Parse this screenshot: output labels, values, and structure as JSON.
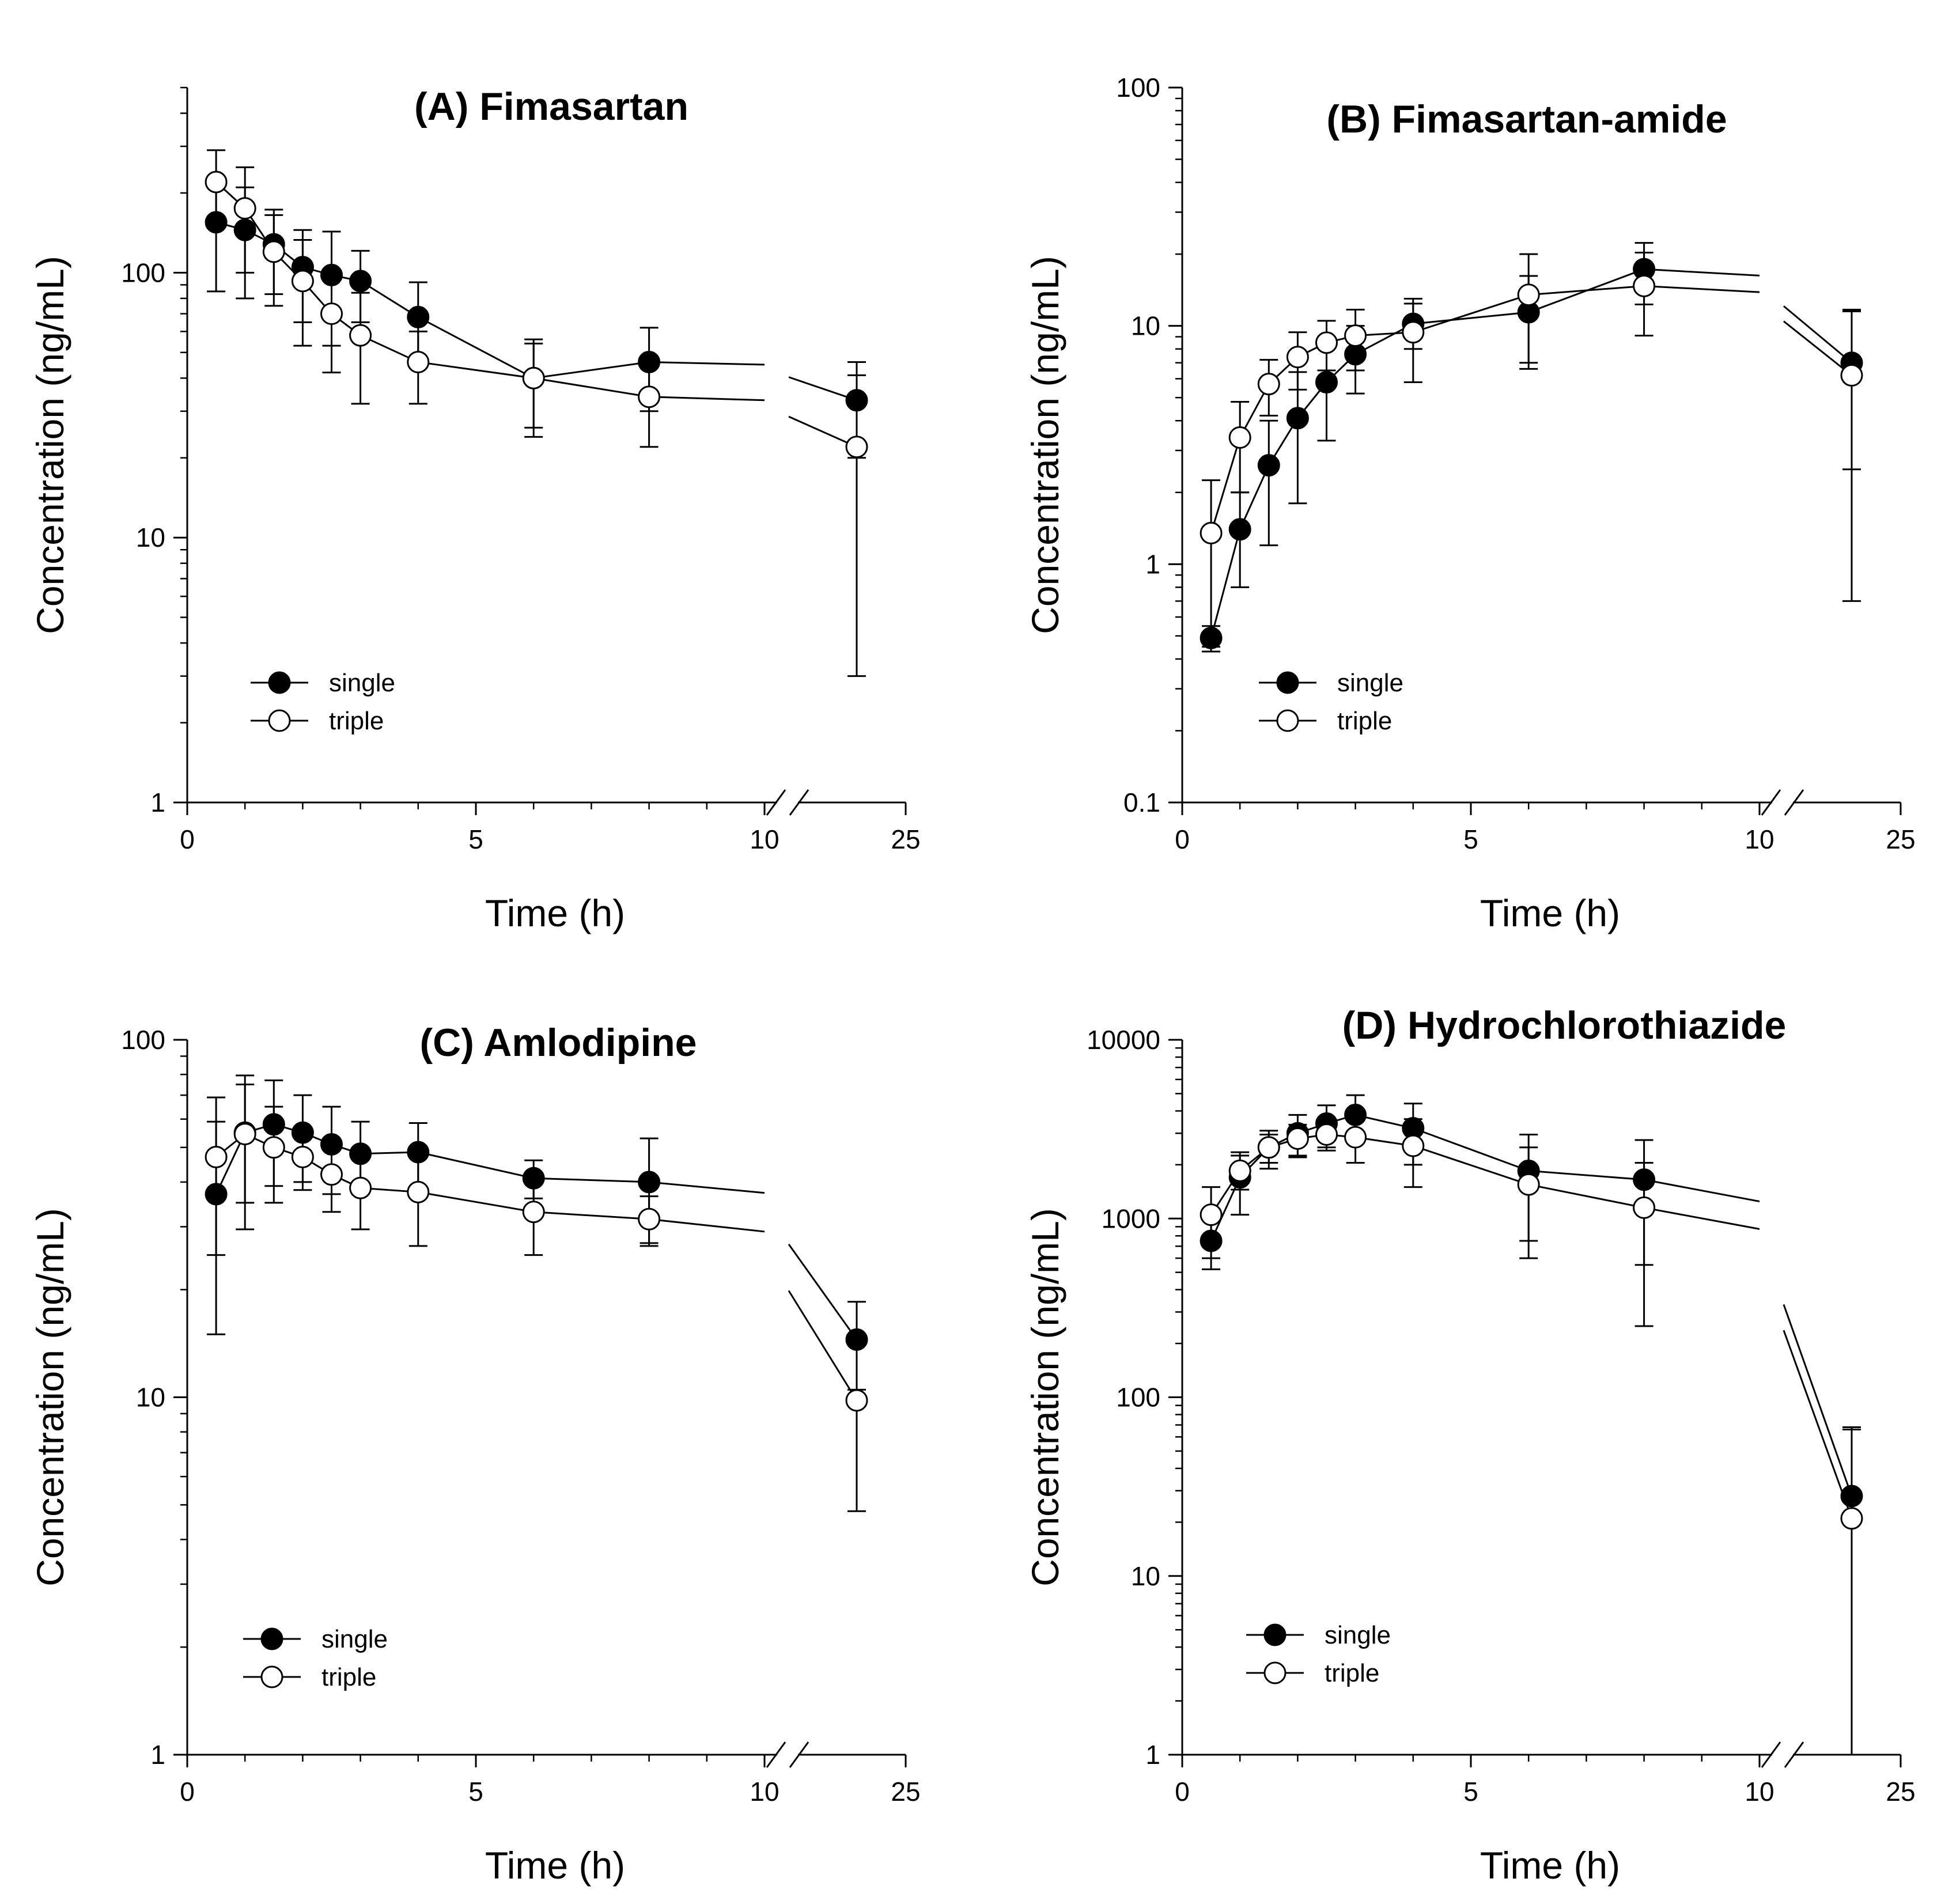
{
  "figure": {
    "x_axis_label": "Time (h)",
    "y_axis_label": "Concentration (ng/mL)"
  },
  "legend": [
    {
      "name": "single",
      "marker": "filled-circle"
    },
    {
      "name": "triple",
      "marker": "open-circle"
    }
  ],
  "colors": {
    "line": "#000000",
    "background": "#ffffff"
  },
  "chart_data": [
    {
      "id": "A",
      "type": "line",
      "title": "(A) Fimasartan",
      "xlabel": "Time (h)",
      "ylabel": "Concentration (ng/mL)",
      "yscale": "log",
      "ylim": [
        1,
        500
      ],
      "yticks": [
        1,
        10,
        100
      ],
      "ytick_labels": [
        "1",
        "10",
        "100"
      ],
      "xticks": [
        0,
        5,
        10,
        25
      ],
      "xtick_labels": [
        "0",
        "5",
        "10",
        "25"
      ],
      "x_axis_break": [
        10,
        24
      ],
      "series": [
        {
          "name": "single",
          "marker": "filled",
          "x": [
            0.5,
            1,
            1.5,
            2,
            2.5,
            3,
            4,
            6,
            8,
            24
          ],
          "y": [
            155,
            145,
            128,
            105,
            98,
            93,
            68,
            40,
            46,
            33
          ],
          "err": [
            70,
            65,
            45,
            40,
            45,
            28,
            24,
            14,
            16,
            13
          ]
        },
        {
          "name": "triple",
          "marker": "open",
          "x": [
            0.5,
            1,
            1.5,
            2,
            2.5,
            3,
            4,
            6,
            8,
            24
          ],
          "y": [
            220,
            175,
            120,
            93,
            70,
            58,
            46,
            40,
            34,
            22
          ],
          "err": [
            70,
            75,
            45,
            40,
            28,
            26,
            14,
            16,
            12,
            19
          ]
        }
      ]
    },
    {
      "id": "B",
      "type": "line",
      "title": "(B) Fimasartan-amide",
      "xlabel": "Time (h)",
      "ylabel": "Concentration (ng/mL)",
      "yscale": "log",
      "ylim": [
        0.1,
        100
      ],
      "yticks": [
        0.1,
        1,
        10,
        100
      ],
      "ytick_labels": [
        "0.1",
        "1",
        "10",
        "100"
      ],
      "xticks": [
        0,
        5,
        10,
        25
      ],
      "xtick_labels": [
        "0",
        "5",
        "10",
        "25"
      ],
      "x_axis_break": [
        10,
        24
      ],
      "series": [
        {
          "name": "single",
          "marker": "filled",
          "x": [
            0.5,
            1,
            1.5,
            2,
            2.5,
            3,
            4,
            6,
            8,
            24
          ],
          "y": [
            0.49,
            1.4,
            2.6,
            4.1,
            5.8,
            7.6,
            10.2,
            11.4,
            17.3,
            7.0
          ],
          "err": [
            0.06,
            0.6,
            1.4,
            2.3,
            2.5,
            2.4,
            2.2,
            4.8,
            5.0,
            4.5
          ]
        },
        {
          "name": "triple",
          "marker": "open",
          "x": [
            0.5,
            1,
            1.5,
            2,
            2.5,
            3,
            4,
            6,
            8,
            24
          ],
          "y": [
            1.35,
            3.4,
            5.7,
            7.4,
            8.5,
            9.1,
            9.4,
            13.5,
            14.7,
            6.2
          ],
          "err": [
            0.9,
            1.4,
            1.5,
            2.0,
            2.0,
            2.6,
            3.6,
            6.5,
            5.6,
            5.5
          ]
        }
      ]
    },
    {
      "id": "C",
      "type": "line",
      "title": "(C) Amlodipine",
      "xlabel": "Time (h)",
      "ylabel": "Concentration (ng/mL)",
      "yscale": "log",
      "ylim": [
        1,
        100
      ],
      "yticks": [
        1,
        10,
        100
      ],
      "ytick_labels": [
        "1",
        "10",
        "100"
      ],
      "xticks": [
        0,
        5,
        10,
        25
      ],
      "xtick_labels": [
        "0",
        "5",
        "10",
        "25"
      ],
      "x_axis_break": [
        10,
        24
      ],
      "series": [
        {
          "name": "single",
          "marker": "filled",
          "x": [
            0.5,
            1,
            1.5,
            2,
            2.5,
            3,
            4,
            6,
            8,
            24
          ],
          "y": [
            37,
            55,
            58,
            55,
            51,
            48,
            48.5,
            41,
            40,
            14.5
          ],
          "err": [
            22,
            20,
            19,
            15,
            14,
            11,
            10,
            5,
            13,
            4
          ]
        },
        {
          "name": "triple",
          "marker": "open",
          "x": [
            0.5,
            1,
            1.5,
            2,
            2.5,
            3,
            4,
            6,
            8,
            24
          ],
          "y": [
            47,
            54.5,
            50,
            47,
            42,
            38.5,
            37.5,
            33,
            31.5,
            9.8
          ],
          "err": [
            22,
            25,
            15,
            9,
            9,
            9,
            11,
            8,
            5,
            5
          ]
        }
      ]
    },
    {
      "id": "D",
      "type": "line",
      "title": "(D) Hydrochlorothiazide",
      "xlabel": "Time (h)",
      "ylabel": "Concentration (ng/mL)",
      "yscale": "log",
      "ylim": [
        1,
        10000
      ],
      "yticks": [
        1,
        10,
        100,
        1000,
        10000
      ],
      "ytick_labels": [
        "1",
        "10",
        "100",
        "1000",
        "10000"
      ],
      "xticks": [
        0,
        5,
        10,
        25
      ],
      "xtick_labels": [
        "0",
        "5",
        "10",
        "25"
      ],
      "x_axis_break": [
        10,
        24
      ],
      "series": [
        {
          "name": "single",
          "marker": "filled",
          "x": [
            0.5,
            1,
            1.5,
            2,
            2.5,
            3,
            4,
            6,
            8,
            24
          ],
          "y": [
            750,
            1700,
            2500,
            3000,
            3400,
            3800,
            3200,
            1850,
            1650,
            28
          ],
          "err": [
            230,
            650,
            450,
            800,
            900,
            1100,
            1200,
            1100,
            1100,
            38
          ]
        },
        {
          "name": "triple",
          "marker": "open",
          "x": [
            0.5,
            1,
            1.5,
            2,
            2.5,
            3,
            4,
            6,
            8,
            24
          ],
          "y": [
            1050,
            1850,
            2500,
            2800,
            2950,
            2850,
            2550,
            1550,
            1150,
            21
          ],
          "err": [
            450,
            400,
            600,
            550,
            550,
            800,
            1050,
            950,
            900,
            47
          ]
        }
      ]
    }
  ]
}
